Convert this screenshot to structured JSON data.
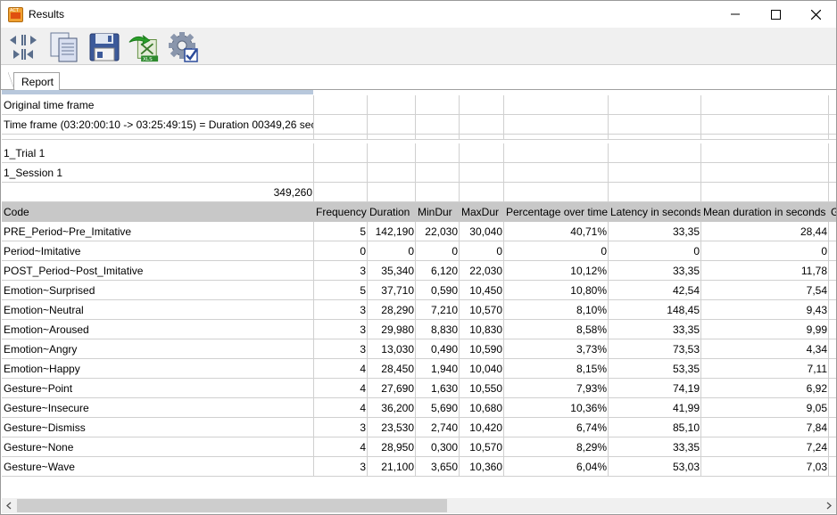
{
  "window": {
    "title": "Results",
    "app_icon": "interact-app-icon"
  },
  "toolbar": {
    "buttons": [
      {
        "name": "expand-collapse-button",
        "icon": "arrows-icon"
      },
      {
        "name": "copy-button",
        "icon": "copy-icon"
      },
      {
        "name": "save-button",
        "icon": "floppy-disk-icon"
      },
      {
        "name": "export-xls-button",
        "icon": "xls-export-icon"
      },
      {
        "name": "settings-button",
        "icon": "gear-check-icon"
      }
    ]
  },
  "tabs": [
    {
      "label": "Report",
      "active": true
    }
  ],
  "report": {
    "info_rows": [
      {
        "text": "Original time frame"
      },
      {
        "text": "Time frame  (03:20:00:10 -> 03:25:49:15) = Duration 00349,26 sec"
      },
      {
        "text": ""
      },
      {
        "text": "1_Trial 1"
      },
      {
        "text": "1_Session 1"
      }
    ],
    "total_duration": "349,260",
    "columns": [
      "Code",
      "Frequency",
      "Duration",
      "MinDur",
      "MaxDur",
      "Percentage over time",
      "Latency in seconds",
      "Mean duration in seconds",
      "G"
    ],
    "rows": [
      [
        "PRE_Period~Pre_Imitative",
        "5",
        "142,190",
        "22,030",
        "30,040",
        "40,71%",
        "33,35",
        "28,44"
      ],
      [
        "Period~Imitative",
        "0",
        "0",
        "0",
        "0",
        "0",
        "0",
        "0"
      ],
      [
        "POST_Period~Post_Imitative",
        "3",
        "35,340",
        "6,120",
        "22,030",
        "10,12%",
        "33,35",
        "11,78"
      ],
      [
        "Emotion~Surprised",
        "5",
        "37,710",
        "0,590",
        "10,450",
        "10,80%",
        "42,54",
        "7,54"
      ],
      [
        "Emotion~Neutral",
        "3",
        "28,290",
        "7,210",
        "10,570",
        "8,10%",
        "148,45",
        "9,43"
      ],
      [
        "Emotion~Aroused",
        "3",
        "29,980",
        "8,830",
        "10,830",
        "8,58%",
        "33,35",
        "9,99"
      ],
      [
        "Emotion~Angry",
        "3",
        "13,030",
        "0,490",
        "10,590",
        "3,73%",
        "73,53",
        "4,34"
      ],
      [
        "Emotion~Happy",
        "4",
        "28,450",
        "1,940",
        "10,040",
        "8,15%",
        "53,35",
        "7,11"
      ],
      [
        "Gesture~Point",
        "4",
        "27,690",
        "1,630",
        "10,550",
        "7,93%",
        "74,19",
        "6,92"
      ],
      [
        "Gesture~Insecure",
        "4",
        "36,200",
        "5,690",
        "10,680",
        "10,36%",
        "41,99",
        "9,05"
      ],
      [
        "Gesture~Dismiss",
        "3",
        "23,530",
        "2,740",
        "10,420",
        "6,74%",
        "85,10",
        "7,84"
      ],
      [
        "Gesture~None",
        "4",
        "28,950",
        "0,300",
        "10,570",
        "8,29%",
        "33,35",
        "7,24"
      ],
      [
        "Gesture~Wave",
        "3",
        "21,100",
        "3,650",
        "10,360",
        "6,04%",
        "53,03",
        "7,03"
      ]
    ]
  }
}
